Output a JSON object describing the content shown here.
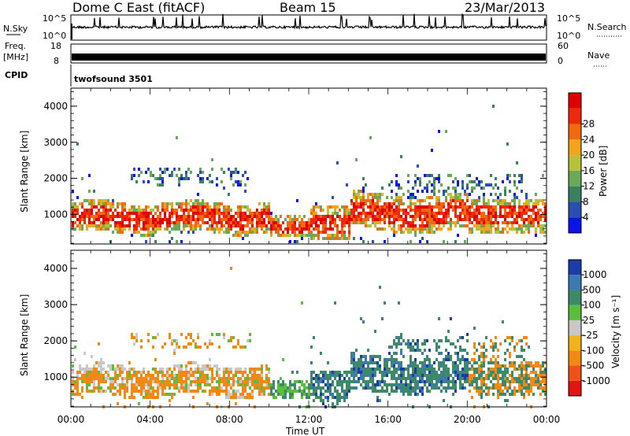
{
  "header": {
    "station": "Dome C East (fitACF)",
    "beam": "Beam 15",
    "date": "23/Mar/2013"
  },
  "strips": {
    "nsky_label": "N.Sky",
    "nsky_ticks": [
      "10^5",
      "10^0"
    ],
    "nsearch_label": "N.Search",
    "nsearch_ticks": [
      "10^5",
      "10^0"
    ],
    "freq_label_1": "Freq.",
    "freq_label_2": "[MHz]",
    "freq_ticks": [
      "18",
      "8"
    ],
    "nave_label": "Nave",
    "nave_ticks": [
      "60",
      "0"
    ],
    "cpid_label": "CPID",
    "cpid_value": "twofsound 3501"
  },
  "chart_data": [
    {
      "type": "heatmap",
      "panel": "power",
      "xlabel": "",
      "ylabel": "Slant Range [km]",
      "yticks": [
        "1000",
        "2000",
        "3000",
        "4000"
      ],
      "ylim": [
        180,
        4500
      ],
      "xlim": [
        "00:00",
        "24:00"
      ],
      "colorbar": {
        "label": "Power [dB]",
        "ticks": [
          "4",
          "8",
          "12",
          "16",
          "20",
          "24",
          "28"
        ],
        "colors": [
          "#0a14e6",
          "#2a4fb0",
          "#3c8064",
          "#6aa85a",
          "#b7c23a",
          "#f2a51c",
          "#f26a10",
          "#ee2a0c",
          "#e00000"
        ]
      }
    },
    {
      "type": "heatmap",
      "panel": "velocity",
      "xlabel": "Time UT",
      "ylabel": "Slant Range [km]",
      "yticks": [
        "1000",
        "2000",
        "3000",
        "4000"
      ],
      "xticks": [
        "00:00",
        "04:00",
        "08:00",
        "12:00",
        "16:00",
        "20:00",
        "00:00"
      ],
      "ylim": [
        180,
        4500
      ],
      "colorbar": {
        "label": "Velocity [m s⁻¹]",
        "ticks": [
          "1000",
          "500",
          "100",
          "25",
          "-25",
          "-100",
          "-500",
          "-1000"
        ],
        "colors": [
          "#1c3ca8",
          "#3d78b2",
          "#3c8a6a",
          "#5bbd3c",
          "#c8c8c8",
          "#f2b21c",
          "#f08a14",
          "#f0501a",
          "#e51414"
        ]
      }
    }
  ]
}
